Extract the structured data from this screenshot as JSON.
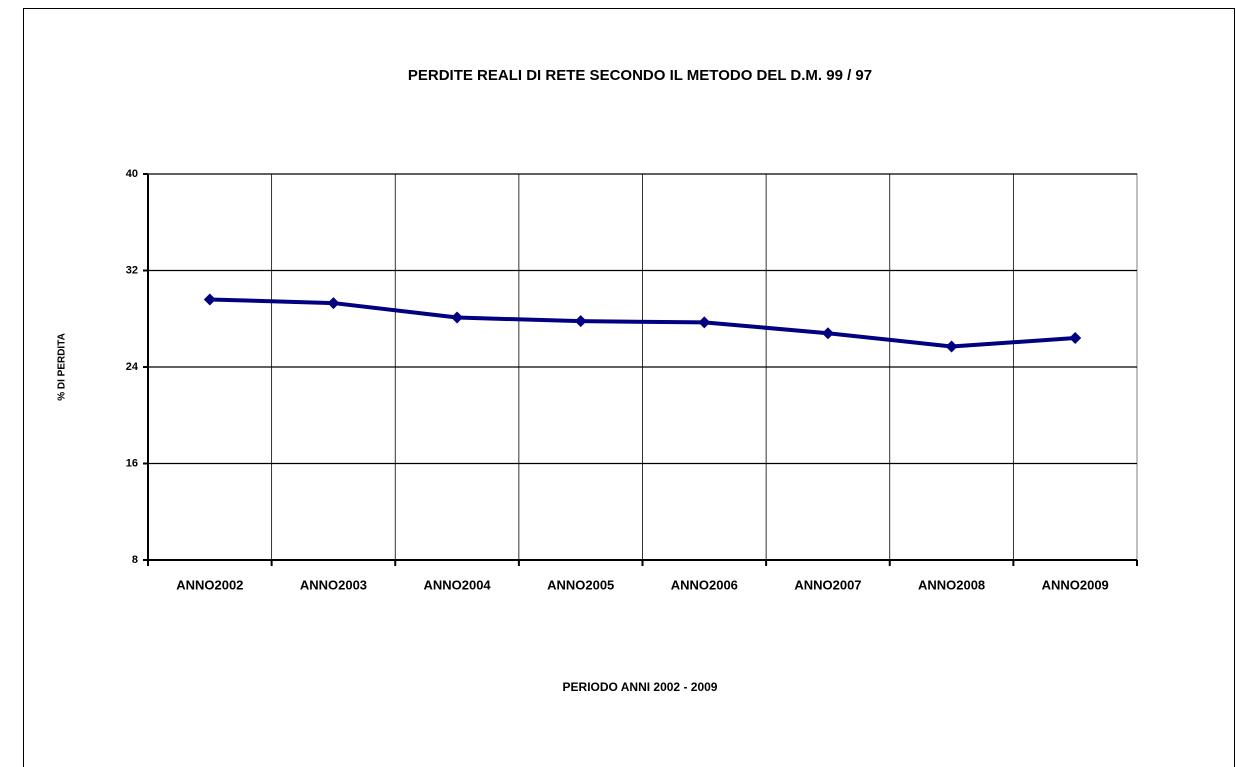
{
  "chart_data": {
    "type": "line",
    "title": "PERDITE REALI DI RETE SECONDO IL METODO DEL  D.M.  99 / 97",
    "x_label": "PERIODO ANNI 2002 - 2009",
    "y_label": "% DI PERDITA",
    "categories": [
      "ANNO2002",
      "ANNO2003",
      "ANNO2004",
      "ANNO2005",
      "ANNO2006",
      "ANNO2007",
      "ANNO2008",
      "ANNO2009"
    ],
    "series": [
      {
        "name": "% DI PERDITA",
        "color": "#000080",
        "values": [
          29.6,
          29.3,
          28.1,
          27.8,
          27.7,
          26.8,
          25.7,
          26.4
        ]
      }
    ],
    "ylim": [
      8,
      40
    ],
    "yticks": [
      8,
      16,
      24,
      32,
      40
    ],
    "grid": true
  }
}
